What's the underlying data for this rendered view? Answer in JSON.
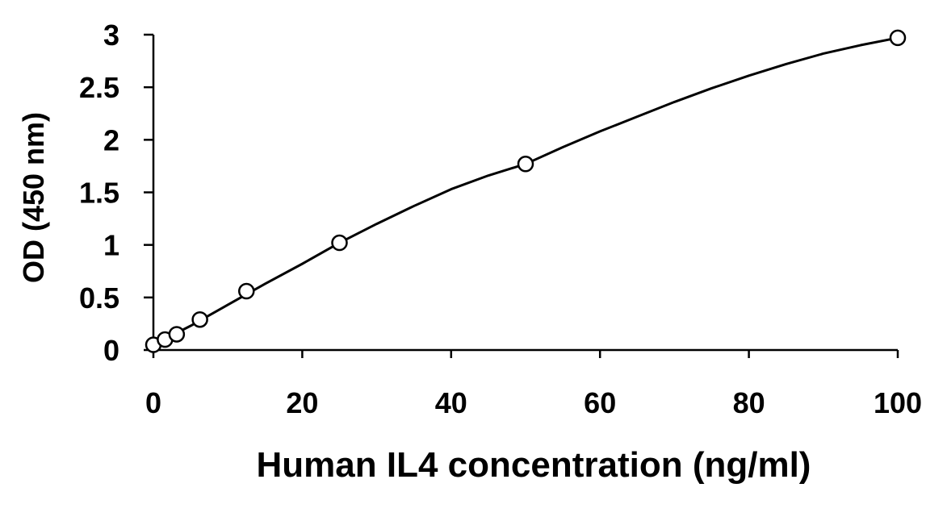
{
  "chart_data": {
    "type": "scatter",
    "title": "",
    "xlabel": "Human IL4 concentration (ng/ml)",
    "ylabel": "OD (450 nm)",
    "xlim": [
      0,
      100
    ],
    "ylim": [
      0,
      3
    ],
    "x_ticks": [
      0,
      20,
      40,
      60,
      80,
      100
    ],
    "y_ticks": [
      0,
      0.5,
      1,
      1.5,
      2,
      2.5,
      3
    ],
    "x_tick_labels": [
      "0",
      "20",
      "40",
      "60",
      "80",
      "100"
    ],
    "y_tick_labels": [
      "0",
      "0.5",
      "1",
      "1.5",
      "2",
      "2.5",
      "3"
    ],
    "grid": false,
    "legend": "none",
    "series": [
      {
        "marker": "open-circle",
        "x": [
          0,
          1.56,
          3.13,
          6.25,
          12.5,
          25,
          50,
          100
        ],
        "y": [
          0.05,
          0.1,
          0.15,
          0.29,
          0.56,
          1.02,
          1.77,
          2.97
        ]
      }
    ],
    "fit_curve": {
      "type": "smooth",
      "x": [
        0,
        5,
        10,
        15,
        20,
        25,
        30,
        35,
        40,
        45,
        50,
        55,
        60,
        65,
        70,
        75,
        80,
        85,
        90,
        95,
        100
      ],
      "y": [
        0.05,
        0.23,
        0.43,
        0.63,
        0.82,
        1.02,
        1.2,
        1.37,
        1.53,
        1.66,
        1.77,
        1.93,
        2.08,
        2.22,
        2.36,
        2.49,
        2.61,
        2.72,
        2.82,
        2.9,
        2.97
      ]
    },
    "colors": {
      "line": "#000000",
      "marker_fill": "#ffffff",
      "axis": "#000000"
    }
  }
}
